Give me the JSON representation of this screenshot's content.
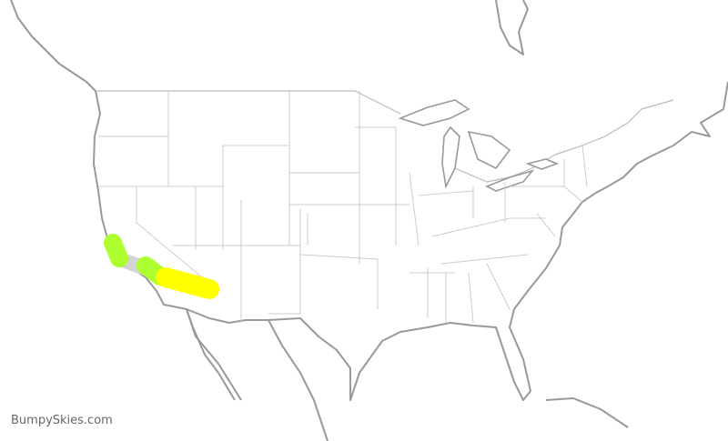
{
  "watermark": "BumpySkies.com",
  "colors": {
    "coast": "#999999",
    "state_border": "#cccccc",
    "route_base": "#d3d3d3",
    "turbulence_light": "#adff2f",
    "turbulence_moderate": "#ffff00"
  },
  "route": {
    "segments": [
      {
        "severity": "light",
        "color": "#adff2f"
      },
      {
        "severity": "light",
        "color": "#adff2f"
      },
      {
        "severity": "moderate",
        "color": "#ffff00"
      }
    ]
  }
}
